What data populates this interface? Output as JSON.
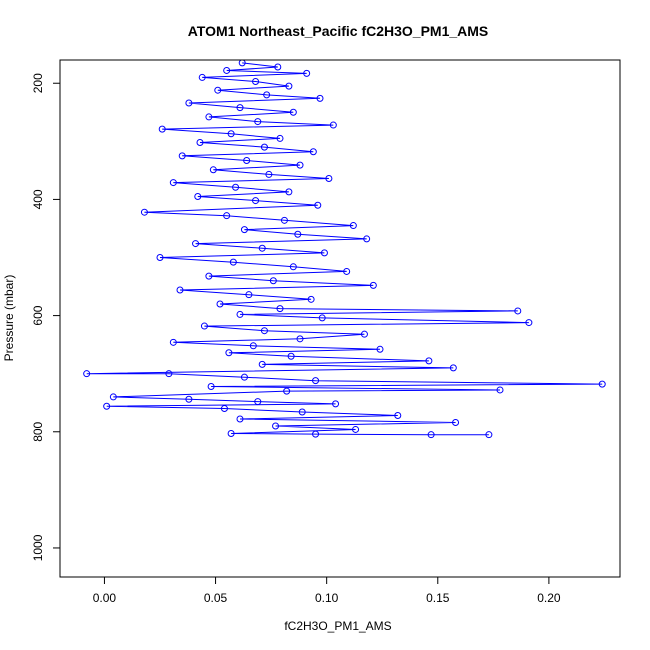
{
  "chart_data": {
    "type": "scatter",
    "title": "ATOM1 Northeast_Pacific fC2H3O_PM1_AMS",
    "xlabel": "fC2H3O_PM1_AMS",
    "ylabel": "Pressure (mbar)",
    "xlim": [
      -0.02,
      0.232
    ],
    "ylim": [
      1050,
      160
    ],
    "y_reversed": true,
    "x_ticks": [
      0.0,
      0.05,
      0.1,
      0.15,
      0.2
    ],
    "x_tick_labels": [
      "0.00",
      "0.05",
      "0.10",
      "0.15",
      "0.20"
    ],
    "y_ticks": [
      200,
      400,
      600,
      800,
      1000
    ],
    "y_tick_labels": [
      "200",
      "400",
      "600",
      "800",
      "1000"
    ],
    "grid": false,
    "marker": "open-circle",
    "connect_points": true,
    "series": [
      {
        "color": "#0000ff",
        "points": [
          [
            0.062,
            165
          ],
          [
            0.078,
            172
          ],
          [
            0.055,
            178
          ],
          [
            0.091,
            183
          ],
          [
            0.044,
            190
          ],
          [
            0.068,
            197
          ],
          [
            0.083,
            205
          ],
          [
            0.051,
            212
          ],
          [
            0.073,
            220
          ],
          [
            0.097,
            226
          ],
          [
            0.038,
            234
          ],
          [
            0.061,
            242
          ],
          [
            0.085,
            250
          ],
          [
            0.047,
            258
          ],
          [
            0.069,
            266
          ],
          [
            0.103,
            272
          ],
          [
            0.026,
            279
          ],
          [
            0.057,
            287
          ],
          [
            0.079,
            295
          ],
          [
            0.043,
            302
          ],
          [
            0.072,
            310
          ],
          [
            0.094,
            318
          ],
          [
            0.035,
            325
          ],
          [
            0.064,
            333
          ],
          [
            0.088,
            341
          ],
          [
            0.049,
            349
          ],
          [
            0.074,
            357
          ],
          [
            0.101,
            364
          ],
          [
            0.031,
            371
          ],
          [
            0.059,
            379
          ],
          [
            0.083,
            387
          ],
          [
            0.042,
            395
          ],
          [
            0.068,
            402
          ],
          [
            0.096,
            410
          ],
          [
            0.018,
            422
          ],
          [
            0.055,
            428
          ],
          [
            0.081,
            436
          ],
          [
            0.112,
            445
          ],
          [
            0.063,
            452
          ],
          [
            0.087,
            460
          ],
          [
            0.118,
            468
          ],
          [
            0.041,
            476
          ],
          [
            0.071,
            484
          ],
          [
            0.099,
            492
          ],
          [
            0.025,
            500
          ],
          [
            0.058,
            508
          ],
          [
            0.085,
            516
          ],
          [
            0.109,
            524
          ],
          [
            0.047,
            532
          ],
          [
            0.076,
            540
          ],
          [
            0.121,
            548
          ],
          [
            0.034,
            556
          ],
          [
            0.065,
            564
          ],
          [
            0.093,
            572
          ],
          [
            0.052,
            580
          ],
          [
            0.079,
            588
          ],
          [
            0.186,
            592
          ],
          [
            0.061,
            598
          ],
          [
            0.098,
            604
          ],
          [
            0.191,
            612
          ],
          [
            0.045,
            618
          ],
          [
            0.072,
            626
          ],
          [
            0.117,
            632
          ],
          [
            0.088,
            640
          ],
          [
            0.031,
            646
          ],
          [
            0.067,
            652
          ],
          [
            0.124,
            658
          ],
          [
            0.056,
            664
          ],
          [
            0.084,
            670
          ],
          [
            0.146,
            678
          ],
          [
            0.071,
            684
          ],
          [
            0.157,
            690
          ],
          [
            -0.008,
            700
          ],
          [
            0.029,
            700
          ],
          [
            0.063,
            706
          ],
          [
            0.095,
            712
          ],
          [
            0.224,
            718
          ],
          [
            0.048,
            722
          ],
          [
            0.178,
            728
          ],
          [
            0.082,
            730
          ],
          [
            0.004,
            740
          ],
          [
            0.038,
            744
          ],
          [
            0.069,
            748
          ],
          [
            0.104,
            752
          ],
          [
            0.001,
            756
          ],
          [
            0.054,
            760
          ],
          [
            0.089,
            766
          ],
          [
            0.132,
            772
          ],
          [
            0.061,
            778
          ],
          [
            0.158,
            784
          ],
          [
            0.077,
            790
          ],
          [
            0.113,
            796
          ],
          [
            0.057,
            803
          ],
          [
            0.095,
            804
          ],
          [
            0.147,
            805
          ],
          [
            0.173,
            805
          ]
        ]
      }
    ]
  }
}
